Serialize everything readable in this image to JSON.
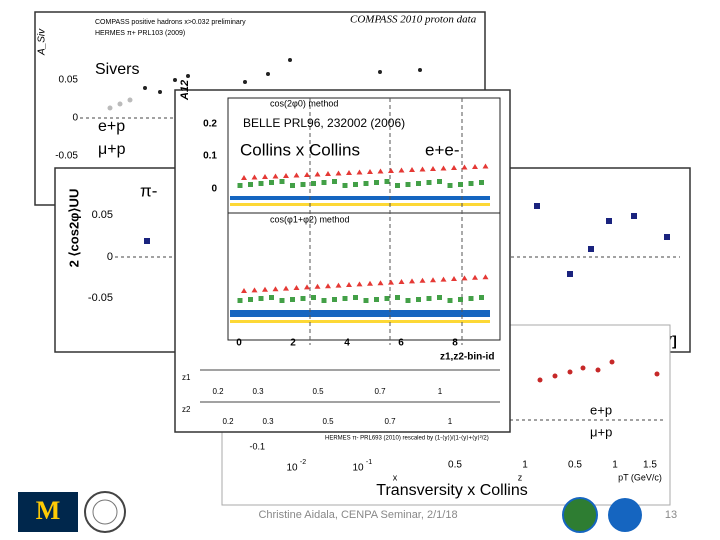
{
  "slide": {
    "footer": "Christine Aidala, CENPA Seminar, 2/1/18",
    "page_number": "13",
    "caption": "Transversity x Collins"
  },
  "sivers": {
    "header": "COMPASS 2010 proton data",
    "legend": [
      "COMPASS positive hadrons x>0.032 preliminary",
      "HERMES π+ PRL103 (2009)"
    ],
    "label": "Sivers",
    "reactions": [
      "e+p",
      "μ+p"
    ],
    "y_ticks": [
      "0.05",
      "0",
      "-0.05"
    ],
    "y_label": "A_Siv"
  },
  "cos2phi": {
    "y_label": "2 ⟨cos2φ⟩UU",
    "label": "π-",
    "y_ticks": [
      "0.05",
      "0",
      "-0.05"
    ],
    "unit": "eV]"
  },
  "collins": {
    "reactions": [
      "e+p",
      "μ+p"
    ],
    "legend": "HERMES π- PRL693 (2010) rescaled by (1-⟨y⟩)/(1-⟨y⟩+⟨y⟩²/2)",
    "y_ticks": [
      "-0.1"
    ],
    "x_labels": [
      "10",
      "-2",
      "10",
      "-1",
      "x",
      "0.5",
      "z",
      "1",
      "0.5",
      "1",
      "1.5",
      "pT (GeV/c)"
    ]
  },
  "belle": {
    "reference": "BELLE PRL96, 232002 (2006)",
    "label": "Collins x Collins",
    "reaction": "e+e-",
    "y_label": "A12",
    "methods": [
      "cos(2φ0) method",
      "cos(φ1+φ2) method"
    ],
    "y_ticks": [
      "0.2",
      "0.1",
      "0"
    ],
    "x_ticks": [
      "0",
      "2",
      "4",
      "6",
      "8"
    ],
    "x_label": "z1,z2-bin-id",
    "strip_labels": [
      "z1",
      "z2"
    ],
    "strip_ticks": [
      "0.2",
      "0.3",
      "0.5",
      "0.7",
      "1"
    ]
  }
}
